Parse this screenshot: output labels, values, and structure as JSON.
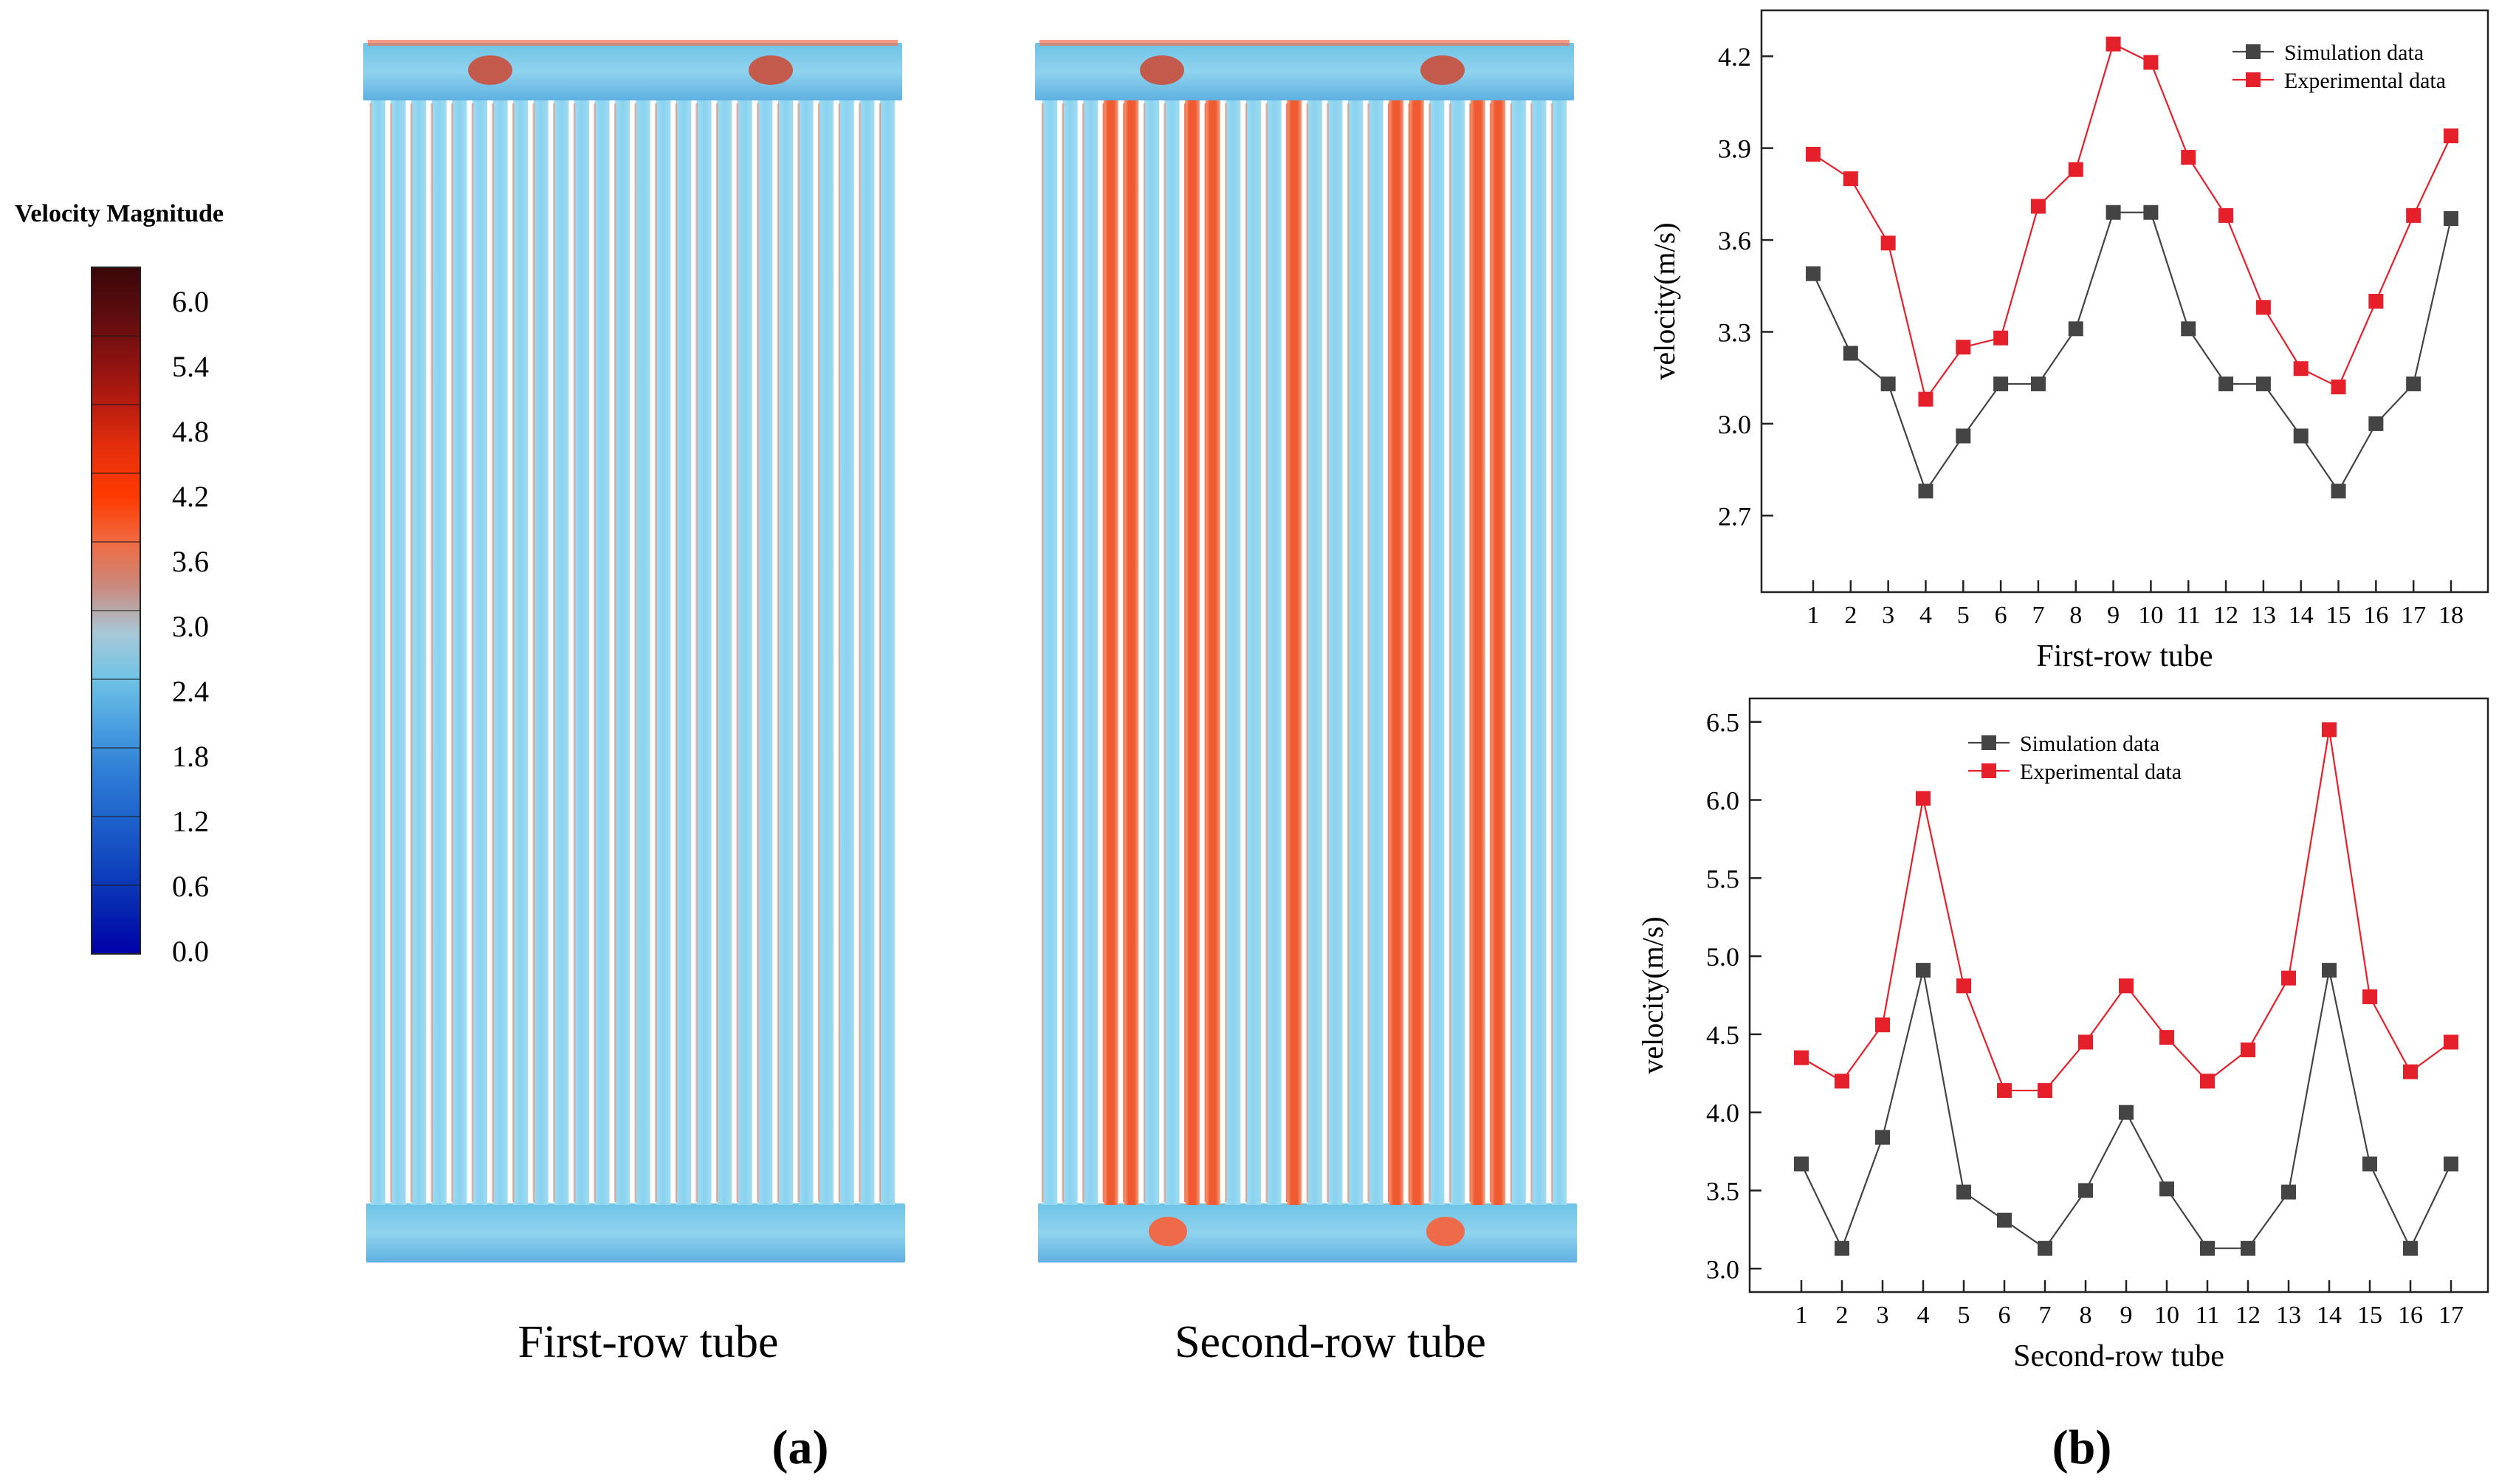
{
  "colorbar": {
    "title": "Velocity Magnitude",
    "ticks": [
      "6.0",
      "5.4",
      "4.8",
      "4.2",
      "3.6",
      "3.0",
      "2.4",
      "1.8",
      "1.2",
      "0.6",
      "0.0"
    ],
    "colors": [
      "#3a0608",
      "#5c0c0e",
      "#8a1210",
      "#b81c10",
      "#e8300c",
      "#ff3a00",
      "#f06a40",
      "#c98a80",
      "#a8c8d8",
      "#6fc3e6",
      "#4aa0e0",
      "#2f7fd6",
      "#1f63cc",
      "#1147bf",
      "#0626b0",
      "#0000a8"
    ]
  },
  "panel_a": {
    "label": "(a)",
    "left_title": "First-row tube",
    "right_title": "Second-row tube"
  },
  "panel_b": {
    "label": "(b)"
  },
  "chart_data": [
    {
      "type": "line",
      "title": "",
      "xlabel": "First-row tube",
      "ylabel": "velocity(m/s)",
      "x": [
        1,
        2,
        3,
        4,
        5,
        6,
        7,
        8,
        9,
        10,
        11,
        12,
        13,
        14,
        15,
        16,
        17,
        18
      ],
      "xticks": [
        "1",
        "2",
        "3",
        "4",
        "5",
        "6",
        "7",
        "8",
        "9",
        "10",
        "11",
        "12",
        "13",
        "14",
        "15",
        "16",
        "17",
        "18"
      ],
      "ylim": [
        2.45,
        4.35
      ],
      "yticks": [
        "2.7",
        "3.0",
        "3.3",
        "3.6",
        "3.9",
        "4.2"
      ],
      "ytick_values": [
        2.7,
        3.0,
        3.3,
        3.6,
        3.9,
        4.2
      ],
      "legend_position": "top-right",
      "series": [
        {
          "name": "Simulation data",
          "color": "#444444",
          "values": [
            3.49,
            3.23,
            3.13,
            2.78,
            2.96,
            3.13,
            3.13,
            3.31,
            3.69,
            3.69,
            3.31,
            3.13,
            3.13,
            2.96,
            2.78,
            3.0,
            3.13,
            3.67
          ]
        },
        {
          "name": "Experimental data",
          "color": "#e5202a",
          "values": [
            3.88,
            3.8,
            3.59,
            3.08,
            3.25,
            3.28,
            3.71,
            3.83,
            4.24,
            4.18,
            3.87,
            3.68,
            3.38,
            3.18,
            3.12,
            3.4,
            3.68,
            3.94
          ]
        }
      ]
    },
    {
      "type": "line",
      "title": "",
      "xlabel": "Second-row tube",
      "ylabel": "velocity(m/s)",
      "x": [
        1,
        2,
        3,
        4,
        5,
        6,
        7,
        8,
        9,
        10,
        11,
        12,
        13,
        14,
        15,
        16,
        17
      ],
      "xticks": [
        "1",
        "2",
        "3",
        "4",
        "5",
        "6",
        "7",
        "8",
        "9",
        "10",
        "11",
        "12",
        "13",
        "14",
        "15",
        "16",
        "17"
      ],
      "ylim": [
        2.85,
        6.65
      ],
      "yticks": [
        "3.0",
        "3.5",
        "4.0",
        "4.5",
        "5.0",
        "5.5",
        "6.0",
        "6.5"
      ],
      "ytick_values": [
        3.0,
        3.5,
        4.0,
        4.5,
        5.0,
        5.5,
        6.0,
        6.5
      ],
      "legend_position": "top-left",
      "series": [
        {
          "name": "Simulation data",
          "color": "#444444",
          "values": [
            3.67,
            3.13,
            3.84,
            4.91,
            3.49,
            3.31,
            3.13,
            3.5,
            4.0,
            3.51,
            3.13,
            3.13,
            3.49,
            4.91,
            3.67,
            3.13,
            3.67
          ]
        },
        {
          "name": "Experimental data",
          "color": "#e5202a",
          "values": [
            4.35,
            4.2,
            4.56,
            6.01,
            4.81,
            4.14,
            4.14,
            4.45,
            4.81,
            4.48,
            4.2,
            4.4,
            4.86,
            6.45,
            4.74,
            4.26,
            4.45
          ]
        }
      ]
    }
  ]
}
